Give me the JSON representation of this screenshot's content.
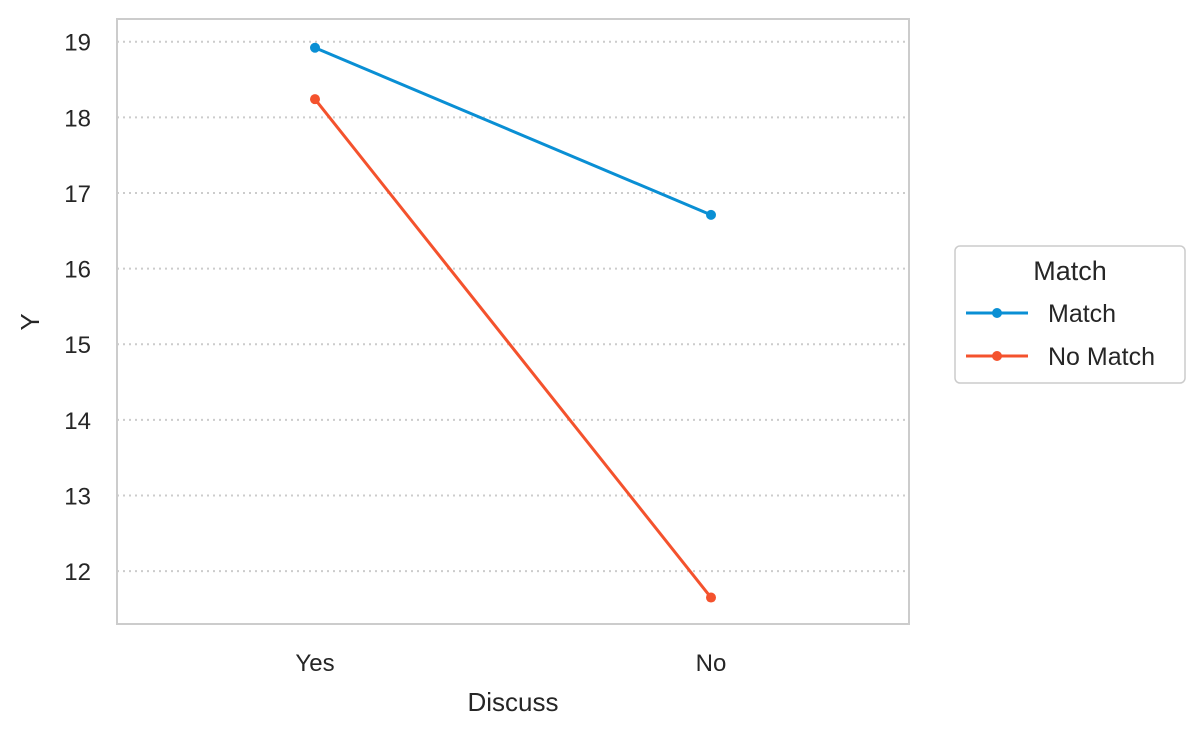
{
  "chart_data": {
    "type": "line",
    "categories": [
      "Yes",
      "No"
    ],
    "xlabel": "Discuss",
    "ylabel": "Y",
    "ylim": [
      11.3,
      19.3
    ],
    "yticks": [
      12,
      13,
      14,
      15,
      16,
      17,
      18,
      19
    ],
    "grid": "horizontal dotted",
    "legend": {
      "title": "Match",
      "placement": "outside right"
    },
    "series": [
      {
        "name": "Match",
        "color": "#0a8fd4",
        "values": [
          18.92,
          16.71
        ]
      },
      {
        "name": "No Match",
        "color": "#f4522d",
        "values": [
          18.24,
          11.65
        ]
      }
    ]
  }
}
